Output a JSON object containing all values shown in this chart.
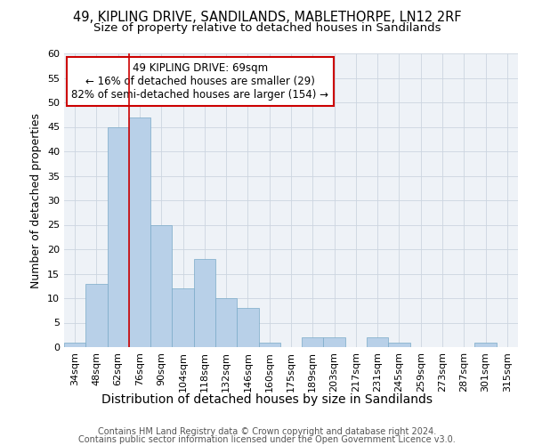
{
  "title1": "49, KIPLING DRIVE, SANDILANDS, MABLETHORPE, LN12 2RF",
  "title2": "Size of property relative to detached houses in Sandilands",
  "xlabel": "Distribution of detached houses by size in Sandilands",
  "ylabel": "Number of detached properties",
  "bar_labels": [
    "34sqm",
    "48sqm",
    "62sqm",
    "76sqm",
    "90sqm",
    "104sqm",
    "118sqm",
    "132sqm",
    "146sqm",
    "160sqm",
    "175sqm",
    "189sqm",
    "203sqm",
    "217sqm",
    "231sqm",
    "245sqm",
    "259sqm",
    "273sqm",
    "287sqm",
    "301sqm",
    "315sqm"
  ],
  "bar_values": [
    1,
    13,
    45,
    47,
    25,
    12,
    18,
    10,
    8,
    1,
    0,
    2,
    2,
    0,
    2,
    1,
    0,
    0,
    0,
    1,
    0
  ],
  "bar_color": "#b8d0e8",
  "bar_edge_color": "#7aaac8",
  "bar_width": 1.0,
  "ylim": [
    0,
    60
  ],
  "yticks": [
    0,
    5,
    10,
    15,
    20,
    25,
    30,
    35,
    40,
    45,
    50,
    55,
    60
  ],
  "red_line_x": 2.5,
  "annotation_text": "49 KIPLING DRIVE: 69sqm\n← 16% of detached houses are smaller (29)\n82% of semi-detached houses are larger (154) →",
  "annotation_box_color": "#ffffff",
  "annotation_border_color": "#cc0000",
  "footer1": "Contains HM Land Registry data © Crown copyright and database right 2024.",
  "footer2": "Contains public sector information licensed under the Open Government Licence v3.0.",
  "bg_color": "#eef2f7",
  "grid_color": "#ccd5e0",
  "title1_fontsize": 10.5,
  "title2_fontsize": 9.5,
  "ylabel_fontsize": 9,
  "xlabel_fontsize": 10,
  "tick_fontsize": 8,
  "footer_fontsize": 7
}
